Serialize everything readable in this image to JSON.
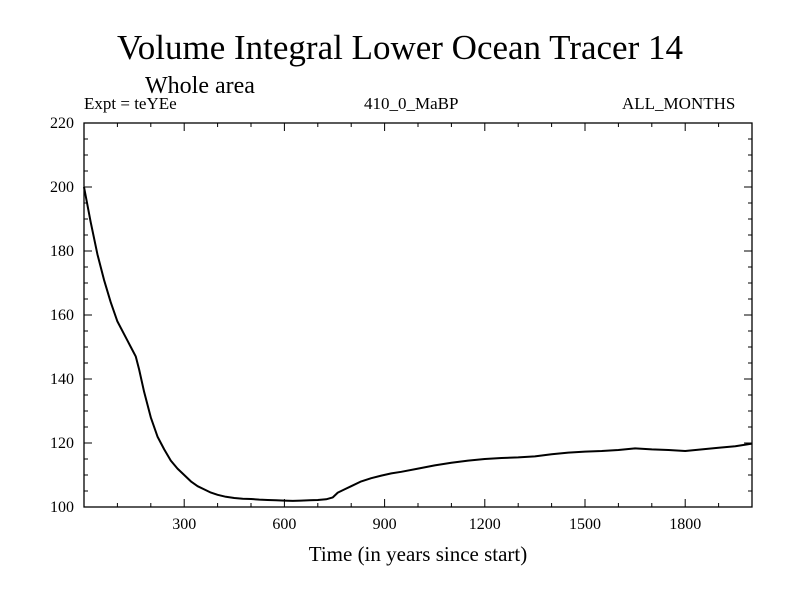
{
  "chart_data": {
    "type": "line",
    "title": "Volume Integral Lower Ocean Tracer 14",
    "subtitle": "Whole area",
    "expt_label": "Expt = teYEe",
    "run_label": "410_0_MaBP",
    "months_label": "ALL_MONTHS",
    "xlabel": "Time (in years since start)",
    "ylabel": "",
    "xlim": [
      0,
      2000
    ],
    "ylim": [
      100,
      220
    ],
    "xticks": [
      300,
      600,
      900,
      1200,
      1500,
      1800
    ],
    "yticks": [
      100,
      120,
      140,
      160,
      180,
      200,
      220
    ],
    "x_minor_step": 100,
    "y_minor_step": 5,
    "grid": false,
    "series": [
      {
        "name": "Volume Integral Lower Ocean Tracer 14",
        "color": "#000000",
        "x": [
          0,
          20,
          40,
          60,
          80,
          100,
          120,
          140,
          155,
          165,
          180,
          200,
          220,
          240,
          260,
          280,
          300,
          320,
          340,
          360,
          380,
          400,
          425,
          450,
          475,
          500,
          525,
          550,
          575,
          600,
          625,
          650,
          675,
          700,
          725,
          745,
          760,
          780,
          800,
          830,
          860,
          890,
          920,
          950,
          1000,
          1050,
          1100,
          1150,
          1200,
          1250,
          1300,
          1350,
          1400,
          1450,
          1500,
          1550,
          1600,
          1650,
          1700,
          1750,
          1800,
          1850,
          1900,
          1950,
          2000
        ],
        "y": [
          200,
          189,
          179,
          171,
          164,
          158,
          154,
          150,
          147,
          143,
          136,
          128,
          122,
          118,
          114.5,
          112,
          110,
          108,
          106.5,
          105.5,
          104.5,
          103.8,
          103.2,
          102.8,
          102.6,
          102.5,
          102.3,
          102.2,
          102.1,
          102.0,
          101.9,
          102.0,
          102.1,
          102.2,
          102.4,
          103.0,
          104.5,
          105.5,
          106.5,
          108.0,
          109.0,
          109.8,
          110.5,
          111.0,
          112.0,
          113.0,
          113.8,
          114.5,
          115.0,
          115.3,
          115.5,
          115.8,
          116.5,
          117.0,
          117.3,
          117.5,
          117.8,
          118.3,
          118.0,
          117.8,
          117.5,
          118.0,
          118.5,
          119.0,
          119.8
        ]
      }
    ]
  }
}
